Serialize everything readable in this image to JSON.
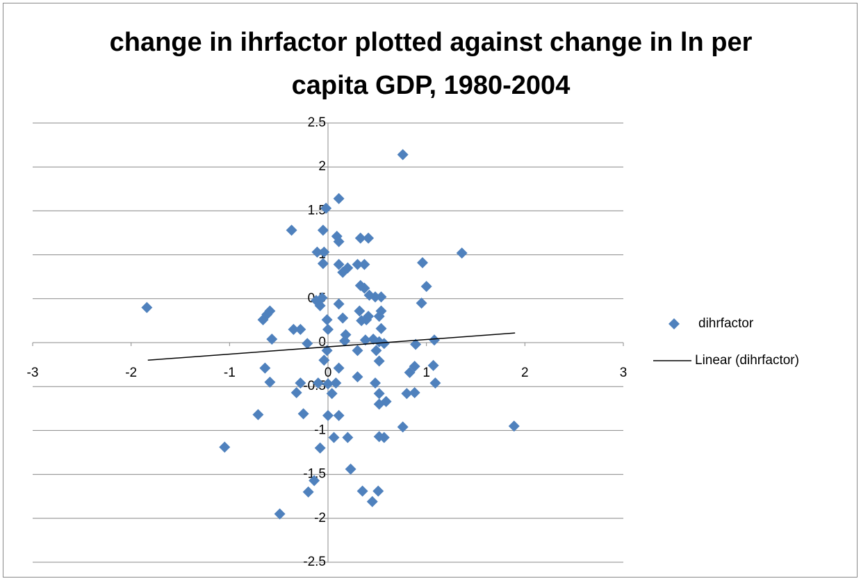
{
  "chart_data": {
    "type": "scatter",
    "title": "change in ihrfactor plotted against change in ln per capita GDP, 1980-2004",
    "xlim": [
      -3,
      3
    ],
    "xticks": [
      -3,
      -2,
      -1,
      0,
      1,
      2,
      3
    ],
    "ylim": [
      -2.5,
      2.5
    ],
    "yticks": [
      -2.5,
      -2,
      -1.5,
      -1,
      -0.5,
      0,
      0.5,
      1,
      1.5,
      2,
      2.5
    ],
    "grid": true,
    "legend": "right",
    "series": [
      {
        "name": "dihrfactor",
        "color": "#4f81bd",
        "type": "scatter",
        "x": [
          0.76,
          0.11,
          -0.02,
          -0.37,
          -0.05,
          0.09,
          0.11,
          0.33,
          0.41,
          1.36,
          -0.11,
          -0.04,
          -0.05,
          0.96,
          0.11,
          0.3,
          0.37,
          0.2,
          0.15,
          1.0,
          0.33,
          0.37,
          0.42,
          0.48,
          0.54,
          -0.06,
          -0.12,
          0.95,
          -0.08,
          0.11,
          -1.84,
          0.32,
          0.54,
          -0.59,
          -0.62,
          0.41,
          0.52,
          -0.66,
          -0.01,
          0.15,
          0.34,
          0.39,
          0.54,
          0,
          -0.35,
          -0.28,
          -0.57,
          0.18,
          1.08,
          0.17,
          0.38,
          0.46,
          0.52,
          0.57,
          0.89,
          -0.21,
          -0.01,
          0.3,
          0.49,
          0.52,
          -0.04,
          0.11,
          -0.64,
          1.07,
          0.88,
          0.83,
          0.3,
          -0.59,
          -0.28,
          -0.1,
          0,
          0.08,
          0.48,
          1.09,
          -0.32,
          0.04,
          0.52,
          0.8,
          0.88,
          0.59,
          0.52,
          -0.71,
          -0.25,
          0,
          0.11,
          0.76,
          1.89,
          0.52,
          0.57,
          0.06,
          0.2,
          -1.05,
          -0.08,
          0.23,
          -0.14,
          -0.2,
          0.35,
          0.51,
          0.45,
          -0.49
        ],
        "values": [
          2.14,
          1.64,
          1.53,
          1.28,
          1.28,
          1.21,
          1.15,
          1.19,
          1.19,
          1.02,
          1.03,
          1.03,
          0.9,
          0.91,
          0.89,
          0.89,
          0.89,
          0.85,
          0.8,
          0.64,
          0.65,
          0.62,
          0.54,
          0.52,
          0.52,
          0.51,
          0.48,
          0.45,
          0.42,
          0.44,
          0.4,
          0.36,
          0.36,
          0.36,
          0.32,
          0.3,
          0.3,
          0.26,
          0.26,
          0.28,
          0.25,
          0.26,
          0.16,
          0.15,
          0.15,
          0.15,
          0.04,
          0.09,
          0.03,
          0.02,
          0.03,
          0.04,
          0.01,
          -0.01,
          -0.02,
          -0.01,
          -0.09,
          -0.09,
          -0.09,
          -0.21,
          -0.2,
          -0.29,
          -0.29,
          -0.26,
          -0.27,
          -0.34,
          -0.39,
          -0.45,
          -0.46,
          -0.46,
          -0.47,
          -0.46,
          -0.46,
          -0.46,
          -0.57,
          -0.58,
          -0.58,
          -0.58,
          -0.57,
          -0.67,
          -0.7,
          -0.82,
          -0.81,
          -0.83,
          -0.83,
          -0.96,
          -0.95,
          -1.07,
          -1.08,
          -1.08,
          -1.08,
          -1.19,
          -1.2,
          -1.44,
          -1.57,
          -1.7,
          -1.69,
          -1.69,
          -1.81,
          -1.95
        ]
      },
      {
        "name": "Linear (dihrfactor)",
        "color": "#000000",
        "type": "line",
        "x": [
          -1.83,
          1.9
        ],
        "values": [
          -0.2,
          0.11
        ]
      }
    ]
  }
}
